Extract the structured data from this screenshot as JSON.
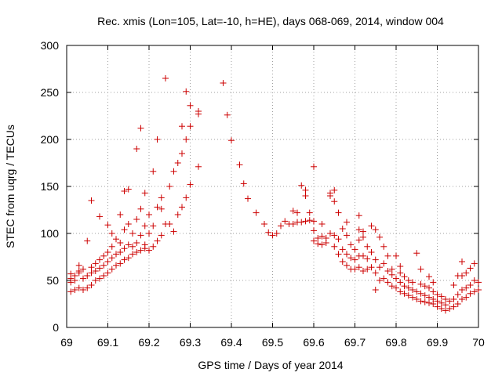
{
  "chart_data": {
    "type": "scatter",
    "title": "Rec. xmis (Lon=105, Lat=-10, h=HE), days 068-069, 2014, window 004",
    "xlabel": "GPS time / Days of year 2014",
    "ylabel": "STEC from uqrg / TECUs",
    "xlim": [
      69,
      70
    ],
    "ylim": [
      0,
      300
    ],
    "x_ticks": [
      "69",
      "69.1",
      "69.2",
      "69.3",
      "69.4",
      "69.5",
      "69.6",
      "69.7",
      "69.8",
      "69.9",
      "70"
    ],
    "y_ticks": [
      "0",
      "50",
      "100",
      "150",
      "200",
      "250",
      "300"
    ],
    "grid": true,
    "marker": "+",
    "color": "#cc0000",
    "points": [
      [
        69.01,
        38
      ],
      [
        69.01,
        48
      ],
      [
        69.01,
        52
      ],
      [
        69.01,
        57
      ],
      [
        69.02,
        40
      ],
      [
        69.02,
        50
      ],
      [
        69.02,
        55
      ],
      [
        69.03,
        42
      ],
      [
        69.03,
        58
      ],
      [
        69.03,
        60
      ],
      [
        69.03,
        66
      ],
      [
        69.04,
        40
      ],
      [
        69.04,
        52
      ],
      [
        69.04,
        62
      ],
      [
        69.05,
        42
      ],
      [
        69.05,
        55
      ],
      [
        69.05,
        92
      ],
      [
        69.06,
        45
      ],
      [
        69.06,
        58
      ],
      [
        69.06,
        64
      ],
      [
        69.06,
        135
      ],
      [
        69.07,
        50
      ],
      [
        69.07,
        60
      ],
      [
        69.07,
        68
      ],
      [
        69.08,
        52
      ],
      [
        69.08,
        63
      ],
      [
        69.08,
        72
      ],
      [
        69.08,
        118
      ],
      [
        69.09,
        55
      ],
      [
        69.09,
        66
      ],
      [
        69.09,
        76
      ],
      [
        69.1,
        58
      ],
      [
        69.1,
        70
      ],
      [
        69.1,
        80
      ],
      [
        69.1,
        109
      ],
      [
        69.11,
        62
      ],
      [
        69.11,
        74
      ],
      [
        69.11,
        86
      ],
      [
        69.11,
        100
      ],
      [
        69.12,
        66
      ],
      [
        69.12,
        78
      ],
      [
        69.12,
        94
      ],
      [
        69.13,
        68
      ],
      [
        69.13,
        80
      ],
      [
        69.13,
        90
      ],
      [
        69.13,
        120
      ],
      [
        69.14,
        72
      ],
      [
        69.14,
        84
      ],
      [
        69.14,
        104
      ],
      [
        69.14,
        145
      ],
      [
        69.15,
        74
      ],
      [
        69.15,
        88
      ],
      [
        69.15,
        110
      ],
      [
        69.15,
        147
      ],
      [
        69.16,
        78
      ],
      [
        69.16,
        86
      ],
      [
        69.16,
        100
      ],
      [
        69.17,
        80
      ],
      [
        69.17,
        90
      ],
      [
        69.17,
        115
      ],
      [
        69.17,
        190
      ],
      [
        69.18,
        82
      ],
      [
        69.18,
        98
      ],
      [
        69.18,
        126
      ],
      [
        69.18,
        212
      ],
      [
        69.19,
        84
      ],
      [
        69.19,
        88
      ],
      [
        69.19,
        108
      ],
      [
        69.19,
        143
      ],
      [
        69.2,
        82
      ],
      [
        69.2,
        100
      ],
      [
        69.2,
        120
      ],
      [
        69.21,
        86
      ],
      [
        69.21,
        108
      ],
      [
        69.21,
        166
      ],
      [
        69.22,
        92
      ],
      [
        69.22,
        128
      ],
      [
        69.22,
        200
      ],
      [
        69.23,
        98
      ],
      [
        69.23,
        138
      ],
      [
        69.23,
        126
      ],
      [
        69.24,
        110
      ],
      [
        69.24,
        265
      ],
      [
        69.25,
        110
      ],
      [
        69.25,
        150
      ],
      [
        69.26,
        102
      ],
      [
        69.26,
        166
      ],
      [
        69.27,
        120
      ],
      [
        69.27,
        175
      ],
      [
        69.28,
        128
      ],
      [
        69.28,
        185
      ],
      [
        69.28,
        214
      ],
      [
        69.29,
        138
      ],
      [
        69.29,
        200
      ],
      [
        69.29,
        251
      ],
      [
        69.3,
        152
      ],
      [
        69.3,
        214
      ],
      [
        69.3,
        236
      ],
      [
        69.32,
        171
      ],
      [
        69.32,
        230
      ],
      [
        69.32,
        227
      ],
      [
        69.38,
        260
      ],
      [
        69.39,
        226
      ],
      [
        69.4,
        199
      ],
      [
        69.42,
        173
      ],
      [
        69.43,
        153
      ],
      [
        69.44,
        137
      ],
      [
        69.46,
        122
      ],
      [
        69.48,
        110
      ],
      [
        69.49,
        101
      ],
      [
        69.5,
        98
      ],
      [
        69.51,
        100
      ],
      [
        69.52,
        108
      ],
      [
        69.53,
        113
      ],
      [
        69.54,
        110
      ],
      [
        69.55,
        124
      ],
      [
        69.55,
        110
      ],
      [
        69.56,
        112
      ],
      [
        69.56,
        122
      ],
      [
        69.57,
        112
      ],
      [
        69.57,
        151
      ],
      [
        69.58,
        113
      ],
      [
        69.58,
        146
      ],
      [
        69.58,
        140
      ],
      [
        69.59,
        114
      ],
      [
        69.59,
        122
      ],
      [
        69.6,
        171
      ],
      [
        69.6,
        103
      ],
      [
        69.6,
        113
      ],
      [
        69.6,
        92
      ],
      [
        69.61,
        95
      ],
      [
        69.61,
        89
      ],
      [
        69.62,
        88
      ],
      [
        69.62,
        97
      ],
      [
        69.62,
        110
      ],
      [
        69.63,
        90
      ],
      [
        69.63,
        95
      ],
      [
        69.64,
        100
      ],
      [
        69.64,
        140
      ],
      [
        69.64,
        143
      ],
      [
        69.65,
        86
      ],
      [
        69.65,
        98
      ],
      [
        69.65,
        134
      ],
      [
        69.65,
        146
      ],
      [
        69.66,
        78
      ],
      [
        69.66,
        94
      ],
      [
        69.66,
        122
      ],
      [
        69.67,
        70
      ],
      [
        69.67,
        83
      ],
      [
        69.67,
        105
      ],
      [
        69.68,
        66
      ],
      [
        69.68,
        78
      ],
      [
        69.68,
        98
      ],
      [
        69.68,
        112
      ],
      [
        69.69,
        62
      ],
      [
        69.69,
        74
      ],
      [
        69.69,
        88
      ],
      [
        69.7,
        62
      ],
      [
        69.7,
        72
      ],
      [
        69.7,
        83
      ],
      [
        69.71,
        64
      ],
      [
        69.71,
        76
      ],
      [
        69.71,
        93
      ],
      [
        69.71,
        104
      ],
      [
        69.71,
        119
      ],
      [
        69.72,
        60
      ],
      [
        69.72,
        76
      ],
      [
        69.72,
        96
      ],
      [
        69.72,
        102
      ],
      [
        69.73,
        62
      ],
      [
        69.73,
        73
      ],
      [
        69.73,
        86
      ],
      [
        69.74,
        64
      ],
      [
        69.74,
        80
      ],
      [
        69.74,
        108
      ],
      [
        69.75,
        40
      ],
      [
        69.75,
        58
      ],
      [
        69.75,
        72
      ],
      [
        69.75,
        104
      ],
      [
        69.76,
        50
      ],
      [
        69.76,
        64
      ],
      [
        69.76,
        96
      ],
      [
        69.77,
        52
      ],
      [
        69.77,
        68
      ],
      [
        69.77,
        86
      ],
      [
        69.78,
        48
      ],
      [
        69.78,
        60
      ],
      [
        69.78,
        76
      ],
      [
        69.79,
        44
      ],
      [
        69.79,
        56
      ],
      [
        69.79,
        62
      ],
      [
        69.8,
        42
      ],
      [
        69.8,
        52
      ],
      [
        69.8,
        76
      ],
      [
        69.81,
        38
      ],
      [
        69.81,
        48
      ],
      [
        69.81,
        58
      ],
      [
        69.81,
        65
      ],
      [
        69.82,
        36
      ],
      [
        69.82,
        44
      ],
      [
        69.82,
        54
      ],
      [
        69.83,
        34
      ],
      [
        69.83,
        42
      ],
      [
        69.83,
        50
      ],
      [
        69.84,
        32
      ],
      [
        69.84,
        40
      ],
      [
        69.84,
        48
      ],
      [
        69.85,
        30
      ],
      [
        69.85,
        38
      ],
      [
        69.85,
        79
      ],
      [
        69.86,
        28
      ],
      [
        69.86,
        36
      ],
      [
        69.86,
        46
      ],
      [
        69.86,
        62
      ],
      [
        69.87,
        27
      ],
      [
        69.87,
        34
      ],
      [
        69.87,
        44
      ],
      [
        69.88,
        26
      ],
      [
        69.88,
        32
      ],
      [
        69.88,
        42
      ],
      [
        69.88,
        54
      ],
      [
        69.89,
        25
      ],
      [
        69.89,
        30
      ],
      [
        69.89,
        38
      ],
      [
        69.89,
        48
      ],
      [
        69.9,
        22
      ],
      [
        69.9,
        28
      ],
      [
        69.9,
        35
      ],
      [
        69.91,
        20
      ],
      [
        69.91,
        26
      ],
      [
        69.91,
        33
      ],
      [
        69.92,
        18
      ],
      [
        69.92,
        24
      ],
      [
        69.92,
        30
      ],
      [
        69.93,
        20
      ],
      [
        69.93,
        28
      ],
      [
        69.94,
        22
      ],
      [
        69.94,
        30
      ],
      [
        69.94,
        45
      ],
      [
        69.95,
        25
      ],
      [
        69.95,
        35
      ],
      [
        69.95,
        55
      ],
      [
        69.96,
        30
      ],
      [
        69.96,
        40
      ],
      [
        69.96,
        55
      ],
      [
        69.96,
        70
      ],
      [
        69.97,
        32
      ],
      [
        69.97,
        42
      ],
      [
        69.97,
        58
      ],
      [
        69.98,
        36
      ],
      [
        69.98,
        45
      ],
      [
        69.98,
        63
      ],
      [
        69.99,
        38
      ],
      [
        69.99,
        50
      ],
      [
        69.99,
        68
      ],
      [
        70.0,
        40
      ],
      [
        70.0,
        48
      ]
    ]
  }
}
